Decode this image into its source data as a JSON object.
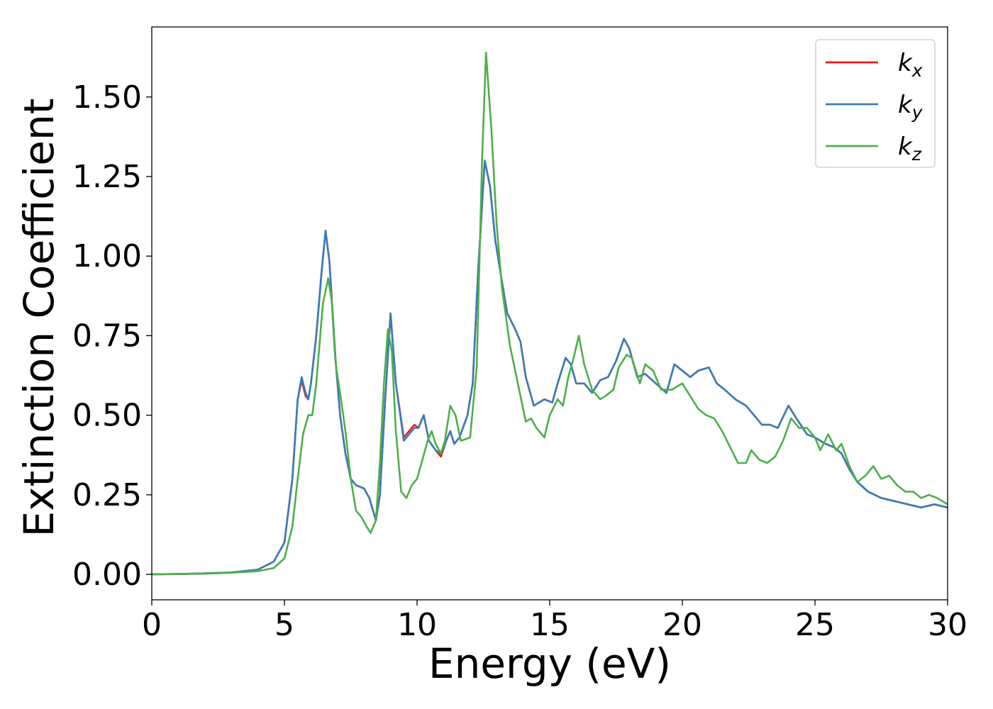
{
  "chart_data": {
    "type": "line",
    "title": "",
    "xlabel": "Energy (eV)",
    "ylabel": "Extinction Coefficient",
    "xlim": [
      0,
      30
    ],
    "ylim": [
      -0.08,
      1.72
    ],
    "xticks": [
      0,
      5,
      10,
      15,
      20,
      25,
      30
    ],
    "xtick_labels": [
      "0",
      "5",
      "10",
      "15",
      "20",
      "25",
      "30"
    ],
    "yticks": [
      0,
      0.25,
      0.5,
      0.75,
      1.0,
      1.25,
      1.5
    ],
    "ytick_labels": [
      "0.00",
      "0.25",
      "0.50",
      "0.75",
      "1.00",
      "1.25",
      "1.50"
    ],
    "grid": false,
    "legend_position": "top-right",
    "series": [
      {
        "name": "k_x",
        "label_base": "k",
        "label_sub": "x",
        "color": "#e41a1c",
        "points": [
          [
            0,
            0
          ],
          [
            1,
            0.001
          ],
          [
            2,
            0.003
          ],
          [
            3,
            0.006
          ],
          [
            4,
            0.015
          ],
          [
            4.6,
            0.04
          ],
          [
            5,
            0.1
          ],
          [
            5.3,
            0.3
          ],
          [
            5.5,
            0.55
          ],
          [
            5.65,
            0.61
          ],
          [
            5.8,
            0.56
          ],
          [
            5.9,
            0.55
          ],
          [
            6.0,
            0.6
          ],
          [
            6.2,
            0.75
          ],
          [
            6.4,
            0.95
          ],
          [
            6.55,
            1.08
          ],
          [
            6.7,
            0.98
          ],
          [
            6.9,
            0.7
          ],
          [
            7.1,
            0.5
          ],
          [
            7.3,
            0.38
          ],
          [
            7.5,
            0.3
          ],
          [
            7.7,
            0.28
          ],
          [
            8.0,
            0.27
          ],
          [
            8.2,
            0.24
          ],
          [
            8.45,
            0.17
          ],
          [
            8.6,
            0.25
          ],
          [
            8.8,
            0.55
          ],
          [
            9.0,
            0.82
          ],
          [
            9.2,
            0.6
          ],
          [
            9.5,
            0.43
          ],
          [
            9.7,
            0.45
          ],
          [
            9.9,
            0.47
          ],
          [
            10.05,
            0.46
          ],
          [
            10.25,
            0.5
          ],
          [
            10.45,
            0.42
          ],
          [
            10.7,
            0.39
          ],
          [
            10.9,
            0.37
          ],
          [
            11.1,
            0.42
          ],
          [
            11.25,
            0.45
          ],
          [
            11.4,
            0.41
          ],
          [
            11.6,
            0.43
          ],
          [
            11.9,
            0.5
          ],
          [
            12.1,
            0.6
          ],
          [
            12.3,
            0.95
          ],
          [
            12.55,
            1.3
          ],
          [
            12.75,
            1.22
          ],
          [
            12.95,
            1.05
          ],
          [
            13.2,
            0.92
          ],
          [
            13.4,
            0.82
          ],
          [
            13.7,
            0.77
          ],
          [
            13.9,
            0.73
          ],
          [
            14.1,
            0.62
          ],
          [
            14.4,
            0.53
          ],
          [
            14.8,
            0.55
          ],
          [
            15.1,
            0.54
          ],
          [
            15.3,
            0.6
          ],
          [
            15.6,
            0.68
          ],
          [
            15.8,
            0.66
          ],
          [
            16.0,
            0.6
          ],
          [
            16.3,
            0.6
          ],
          [
            16.6,
            0.57
          ],
          [
            16.9,
            0.61
          ],
          [
            17.2,
            0.62
          ],
          [
            17.5,
            0.67
          ],
          [
            17.8,
            0.74
          ],
          [
            18.0,
            0.71
          ],
          [
            18.3,
            0.62
          ],
          [
            18.6,
            0.63
          ],
          [
            19.0,
            0.6
          ],
          [
            19.4,
            0.57
          ],
          [
            19.7,
            0.66
          ],
          [
            20.0,
            0.64
          ],
          [
            20.3,
            0.62
          ],
          [
            20.6,
            0.64
          ],
          [
            21.0,
            0.65
          ],
          [
            21.3,
            0.6
          ],
          [
            21.6,
            0.58
          ],
          [
            22.0,
            0.55
          ],
          [
            22.4,
            0.53
          ],
          [
            22.7,
            0.5
          ],
          [
            23.0,
            0.47
          ],
          [
            23.3,
            0.47
          ],
          [
            23.6,
            0.46
          ],
          [
            24.0,
            0.53
          ],
          [
            24.3,
            0.49
          ],
          [
            24.7,
            0.44
          ],
          [
            25.0,
            0.43
          ],
          [
            25.4,
            0.41
          ],
          [
            25.7,
            0.4
          ],
          [
            26.0,
            0.38
          ],
          [
            26.3,
            0.33
          ],
          [
            26.6,
            0.29
          ],
          [
            27.0,
            0.26
          ],
          [
            27.5,
            0.24
          ],
          [
            28.0,
            0.23
          ],
          [
            28.5,
            0.22
          ],
          [
            29.0,
            0.21
          ],
          [
            29.5,
            0.22
          ],
          [
            30,
            0.21
          ]
        ]
      },
      {
        "name": "k_y",
        "label_base": "k",
        "label_sub": "y",
        "color": "#377eb8",
        "points": [
          [
            0,
            0
          ],
          [
            1,
            0.001
          ],
          [
            2,
            0.003
          ],
          [
            3,
            0.006
          ],
          [
            4,
            0.015
          ],
          [
            4.6,
            0.04
          ],
          [
            5,
            0.1
          ],
          [
            5.3,
            0.3
          ],
          [
            5.5,
            0.55
          ],
          [
            5.65,
            0.62
          ],
          [
            5.8,
            0.57
          ],
          [
            5.9,
            0.55
          ],
          [
            6.0,
            0.6
          ],
          [
            6.2,
            0.75
          ],
          [
            6.4,
            0.95
          ],
          [
            6.55,
            1.08
          ],
          [
            6.7,
            0.98
          ],
          [
            6.9,
            0.7
          ],
          [
            7.1,
            0.5
          ],
          [
            7.3,
            0.38
          ],
          [
            7.5,
            0.3
          ],
          [
            7.7,
            0.28
          ],
          [
            8.0,
            0.27
          ],
          [
            8.2,
            0.24
          ],
          [
            8.45,
            0.17
          ],
          [
            8.6,
            0.25
          ],
          [
            8.8,
            0.55
          ],
          [
            9.0,
            0.82
          ],
          [
            9.2,
            0.6
          ],
          [
            9.5,
            0.42
          ],
          [
            9.7,
            0.44
          ],
          [
            9.9,
            0.46
          ],
          [
            10.05,
            0.46
          ],
          [
            10.25,
            0.5
          ],
          [
            10.45,
            0.42
          ],
          [
            10.7,
            0.39
          ],
          [
            10.9,
            0.38
          ],
          [
            11.1,
            0.42
          ],
          [
            11.25,
            0.45
          ],
          [
            11.4,
            0.41
          ],
          [
            11.6,
            0.43
          ],
          [
            11.9,
            0.5
          ],
          [
            12.1,
            0.6
          ],
          [
            12.3,
            0.95
          ],
          [
            12.55,
            1.3
          ],
          [
            12.75,
            1.22
          ],
          [
            12.95,
            1.05
          ],
          [
            13.2,
            0.92
          ],
          [
            13.4,
            0.82
          ],
          [
            13.7,
            0.77
          ],
          [
            13.9,
            0.73
          ],
          [
            14.1,
            0.62
          ],
          [
            14.4,
            0.53
          ],
          [
            14.8,
            0.55
          ],
          [
            15.1,
            0.54
          ],
          [
            15.3,
            0.6
          ],
          [
            15.6,
            0.68
          ],
          [
            15.8,
            0.66
          ],
          [
            16.0,
            0.6
          ],
          [
            16.3,
            0.6
          ],
          [
            16.6,
            0.57
          ],
          [
            16.9,
            0.61
          ],
          [
            17.2,
            0.62
          ],
          [
            17.5,
            0.67
          ],
          [
            17.8,
            0.74
          ],
          [
            18.0,
            0.71
          ],
          [
            18.3,
            0.62
          ],
          [
            18.6,
            0.63
          ],
          [
            19.0,
            0.6
          ],
          [
            19.4,
            0.57
          ],
          [
            19.7,
            0.66
          ],
          [
            20.0,
            0.64
          ],
          [
            20.3,
            0.62
          ],
          [
            20.6,
            0.64
          ],
          [
            21.0,
            0.65
          ],
          [
            21.3,
            0.6
          ],
          [
            21.6,
            0.58
          ],
          [
            22.0,
            0.55
          ],
          [
            22.4,
            0.53
          ],
          [
            22.7,
            0.5
          ],
          [
            23.0,
            0.47
          ],
          [
            23.3,
            0.47
          ],
          [
            23.6,
            0.46
          ],
          [
            24.0,
            0.53
          ],
          [
            24.3,
            0.49
          ],
          [
            24.7,
            0.44
          ],
          [
            25.0,
            0.43
          ],
          [
            25.4,
            0.41
          ],
          [
            25.7,
            0.4
          ],
          [
            26.0,
            0.38
          ],
          [
            26.3,
            0.33
          ],
          [
            26.6,
            0.29
          ],
          [
            27.0,
            0.26
          ],
          [
            27.5,
            0.24
          ],
          [
            28.0,
            0.23
          ],
          [
            28.5,
            0.22
          ],
          [
            29.0,
            0.21
          ],
          [
            29.5,
            0.22
          ],
          [
            30,
            0.21
          ]
        ]
      },
      {
        "name": "k_z",
        "label_base": "k",
        "label_sub": "z",
        "color": "#4daf4a",
        "points": [
          [
            0,
            0
          ],
          [
            1,
            0.001
          ],
          [
            2,
            0.002
          ],
          [
            3,
            0.005
          ],
          [
            4,
            0.01
          ],
          [
            4.6,
            0.02
          ],
          [
            5,
            0.05
          ],
          [
            5.3,
            0.15
          ],
          [
            5.5,
            0.3
          ],
          [
            5.7,
            0.44
          ],
          [
            5.9,
            0.5
          ],
          [
            6.05,
            0.5
          ],
          [
            6.2,
            0.6
          ],
          [
            6.45,
            0.85
          ],
          [
            6.65,
            0.93
          ],
          [
            6.8,
            0.85
          ],
          [
            6.95,
            0.65
          ],
          [
            7.1,
            0.57
          ],
          [
            7.3,
            0.45
          ],
          [
            7.5,
            0.3
          ],
          [
            7.7,
            0.2
          ],
          [
            7.9,
            0.18
          ],
          [
            8.1,
            0.15
          ],
          [
            8.25,
            0.13
          ],
          [
            8.45,
            0.17
          ],
          [
            8.6,
            0.35
          ],
          [
            8.75,
            0.6
          ],
          [
            8.9,
            0.77
          ],
          [
            9.05,
            0.7
          ],
          [
            9.2,
            0.45
          ],
          [
            9.4,
            0.26
          ],
          [
            9.6,
            0.24
          ],
          [
            9.8,
            0.28
          ],
          [
            10.0,
            0.3
          ],
          [
            10.2,
            0.36
          ],
          [
            10.4,
            0.42
          ],
          [
            10.55,
            0.45
          ],
          [
            10.7,
            0.41
          ],
          [
            10.9,
            0.38
          ],
          [
            11.05,
            0.42
          ],
          [
            11.25,
            0.53
          ],
          [
            11.45,
            0.5
          ],
          [
            11.65,
            0.42
          ],
          [
            12.0,
            0.43
          ],
          [
            12.25,
            0.65
          ],
          [
            12.45,
            1.3
          ],
          [
            12.6,
            1.64
          ],
          [
            12.8,
            1.4
          ],
          [
            13.0,
            1.1
          ],
          [
            13.2,
            0.9
          ],
          [
            13.5,
            0.72
          ],
          [
            13.8,
            0.6
          ],
          [
            14.1,
            0.48
          ],
          [
            14.3,
            0.49
          ],
          [
            14.5,
            0.46
          ],
          [
            14.8,
            0.43
          ],
          [
            15.0,
            0.5
          ],
          [
            15.3,
            0.55
          ],
          [
            15.5,
            0.53
          ],
          [
            15.7,
            0.62
          ],
          [
            15.9,
            0.68
          ],
          [
            16.1,
            0.75
          ],
          [
            16.3,
            0.66
          ],
          [
            16.6,
            0.58
          ],
          [
            16.9,
            0.55
          ],
          [
            17.1,
            0.56
          ],
          [
            17.4,
            0.58
          ],
          [
            17.6,
            0.65
          ],
          [
            17.9,
            0.69
          ],
          [
            18.1,
            0.68
          ],
          [
            18.4,
            0.6
          ],
          [
            18.6,
            0.66
          ],
          [
            18.9,
            0.64
          ],
          [
            19.2,
            0.58
          ],
          [
            19.6,
            0.58
          ],
          [
            20.0,
            0.6
          ],
          [
            20.3,
            0.56
          ],
          [
            20.6,
            0.52
          ],
          [
            20.9,
            0.5
          ],
          [
            21.2,
            0.49
          ],
          [
            21.5,
            0.45
          ],
          [
            21.8,
            0.4
          ],
          [
            22.1,
            0.35
          ],
          [
            22.4,
            0.35
          ],
          [
            22.6,
            0.39
          ],
          [
            22.9,
            0.36
          ],
          [
            23.2,
            0.35
          ],
          [
            23.5,
            0.37
          ],
          [
            23.8,
            0.42
          ],
          [
            24.1,
            0.49
          ],
          [
            24.4,
            0.46
          ],
          [
            24.7,
            0.46
          ],
          [
            25.0,
            0.43
          ],
          [
            25.2,
            0.39
          ],
          [
            25.5,
            0.44
          ],
          [
            25.8,
            0.39
          ],
          [
            26.0,
            0.41
          ],
          [
            26.3,
            0.34
          ],
          [
            26.6,
            0.29
          ],
          [
            26.9,
            0.31
          ],
          [
            27.2,
            0.34
          ],
          [
            27.5,
            0.3
          ],
          [
            27.8,
            0.31
          ],
          [
            28.1,
            0.28
          ],
          [
            28.4,
            0.26
          ],
          [
            28.7,
            0.26
          ],
          [
            29.0,
            0.24
          ],
          [
            29.3,
            0.25
          ],
          [
            29.6,
            0.24
          ],
          [
            30,
            0.22
          ]
        ]
      }
    ]
  }
}
